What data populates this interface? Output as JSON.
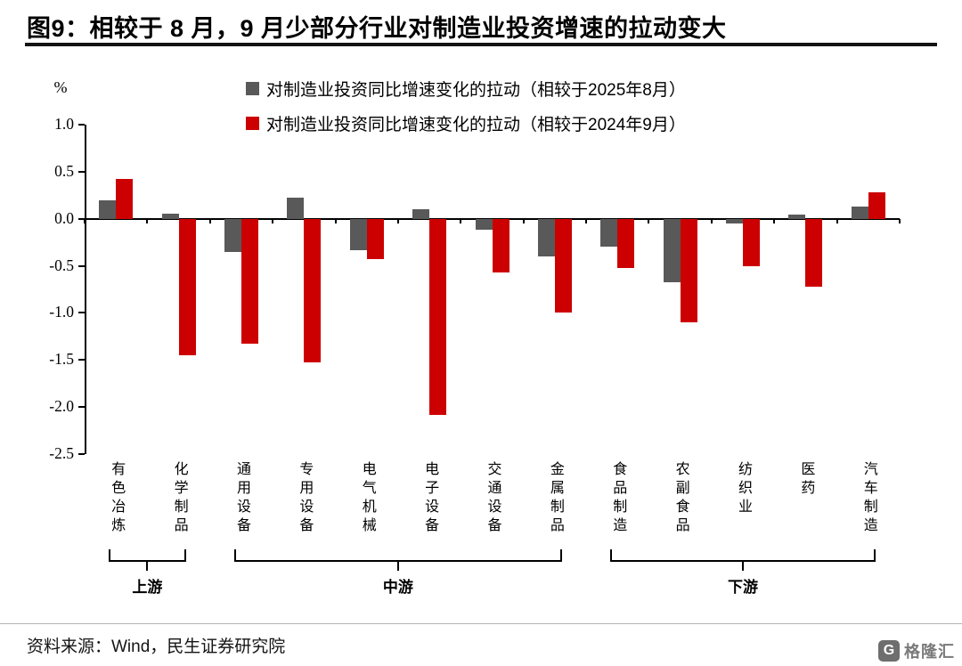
{
  "header": {
    "title": "图9：相较于 8 月，9 月少部分行业对制造业投资增速的拉动变大"
  },
  "chart_data": {
    "type": "bar",
    "title": "图9：相较于 8 月，9 月少部分行业对制造业投资增速的拉动变大",
    "unit_label": "%",
    "legend_position": "top",
    "grid": false,
    "legend": [
      {
        "label": "对制造业投资同比增速变化的拉动（相较于2025年8月）",
        "color": "#595959"
      },
      {
        "label": "对制造业投资同比增速变化的拉动（相较于2024年9月）",
        "color": "#CC0000"
      }
    ],
    "categories": [
      "有色冶炼",
      "化学制品",
      "通用设备",
      "专用设备",
      "电气机械",
      "电子设备",
      "交通设备",
      "金属制品",
      "食品制造",
      "农副食品",
      "纺织业",
      "医药",
      "汽车制造"
    ],
    "series": [
      {
        "name": "对制造业投资同比增速变化的拉动（相较于2025年8月）",
        "color": "#595959",
        "values": [
          0.2,
          0.05,
          -0.35,
          0.22,
          -0.33,
          0.1,
          -0.12,
          -0.4,
          -0.3,
          -0.67,
          -0.05,
          0.04,
          0.13
        ]
      },
      {
        "name": "对制造业投资同比增速变化的拉动（相较于2024年9月）",
        "color": "#CC0000",
        "values": [
          0.42,
          -1.45,
          -1.33,
          -1.53,
          -0.43,
          -2.08,
          -0.57,
          -1.0,
          -0.52,
          -1.1,
          -0.5,
          -0.72,
          0.28
        ]
      }
    ],
    "ylim": [
      -2.5,
      1.0
    ],
    "yticks": [
      "1.0",
      "0.5",
      "0.0",
      "-0.5",
      "-1.0",
      "-1.5",
      "-2.0",
      "-2.5"
    ],
    "groups": [
      {
        "label": "上游",
        "start": 0,
        "end": 1
      },
      {
        "label": "中游",
        "start": 2,
        "end": 7
      },
      {
        "label": "下游",
        "start": 8,
        "end": 12
      }
    ]
  },
  "footer": {
    "source": "资料来源：Wind，民生证券研究院",
    "logo_glyph": "G",
    "logo_text": "格隆汇"
  }
}
